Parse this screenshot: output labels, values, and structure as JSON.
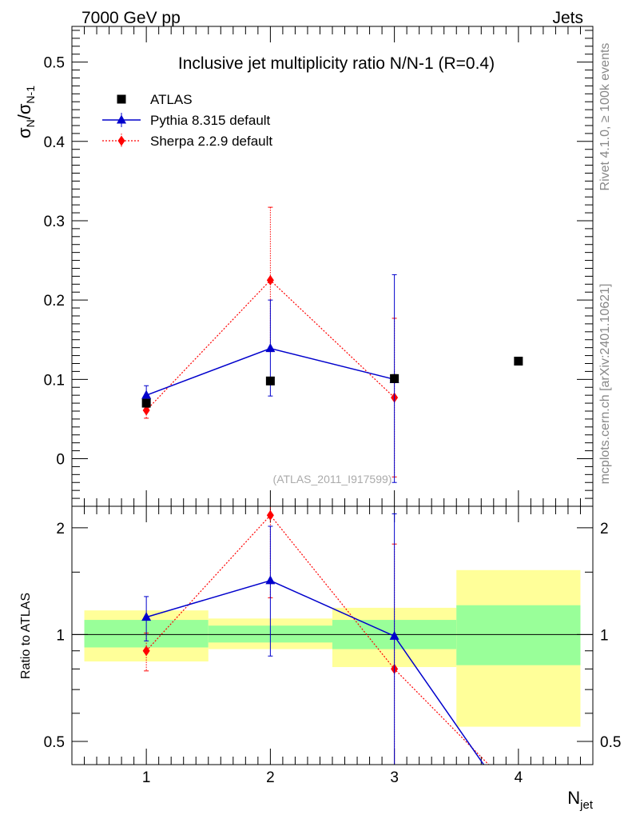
{
  "header": {
    "energy_label": "7000 GeV pp",
    "category_label": "Jets"
  },
  "side_text": {
    "rivet": "Rivet 4.1.0, ≥ 100k events",
    "mcplots": "mcplots.cern.ch [arXiv:2401.10621]"
  },
  "axis_labels": {
    "y_top_main": "σ",
    "y_top_sub1": "N",
    "y_top_slash": "/σ",
    "y_top_sub2": "N-1",
    "y_bottom": "Ratio to ATLAS",
    "x_main": "N",
    "x_sub": "jet"
  },
  "colors": {
    "atlas": "#000000",
    "pythia": "#0000cc",
    "sherpa": "#ff0000",
    "band_inner": "#99ff99",
    "band_outer": "#ffff99"
  },
  "chart_data": [
    {
      "type": "scatter",
      "title": "Inclusive jet multiplicity ratio N/N-1 (R=0.4)",
      "xlabel": "N_jet",
      "ylabel": "σ_N/σ_N-1",
      "xlim": [
        0.4,
        4.6
      ],
      "ylim": [
        -0.06,
        0.545
      ],
      "x_ticks": [
        1,
        2,
        3,
        4
      ],
      "x_tick_labels": [
        "1",
        "2",
        "3",
        "4"
      ],
      "y_ticks": [
        0,
        0.1,
        0.2,
        0.3,
        0.4,
        0.5
      ],
      "y_tick_labels": [
        "0",
        "0.1",
        "0.2",
        "0.3",
        "0.4",
        "0.5"
      ],
      "watermark": "(ATLAS_2011_I917599)",
      "legend_position": "top-left",
      "series": [
        {
          "name": "ATLAS",
          "style": "markers",
          "marker": "square",
          "x": [
            1,
            2,
            3,
            4
          ],
          "y": [
            0.07,
            0.098,
            0.101,
            0.123
          ],
          "err_low": [
            0.003,
            0.004,
            0.005,
            0.004
          ],
          "err_high": [
            0.003,
            0.004,
            0.005,
            0.004
          ]
        },
        {
          "name": "Pythia 8.315 default",
          "style": "line",
          "marker": "triangle",
          "x": [
            1,
            2,
            3
          ],
          "y": [
            0.08,
            0.139,
            0.1
          ],
          "err_low": [
            0.012,
            0.06,
            0.13
          ],
          "err_high": [
            0.012,
            0.061,
            0.132
          ]
        },
        {
          "name": "Sherpa 2.2.9 default",
          "style": "dotted",
          "marker": "diamond",
          "x": [
            1,
            2,
            3
          ],
          "y": [
            0.061,
            0.225,
            0.077
          ],
          "err_low": [
            0.01,
            0.09,
            0.1
          ],
          "err_high": [
            0.01,
            0.092,
            0.1
          ]
        }
      ]
    },
    {
      "type": "line",
      "ylabel": "Ratio to ATLAS",
      "scale": "log",
      "xlim": [
        0.4,
        4.6
      ],
      "ylim": [
        0.43,
        2.3
      ],
      "y_ticks": [
        0.5,
        1,
        2
      ],
      "y_tick_labels": [
        "0.5",
        "1",
        "2"
      ],
      "reference_line": 1,
      "uncertainty_bands": [
        {
          "x_range": [
            0.5,
            1.5
          ],
          "inner": [
            0.92,
            1.1
          ],
          "outer": [
            0.84,
            1.17
          ]
        },
        {
          "x_range": [
            1.5,
            2.5
          ],
          "inner": [
            0.95,
            1.06
          ],
          "outer": [
            0.91,
            1.11
          ]
        },
        {
          "x_range": [
            2.5,
            3.5
          ],
          "inner": [
            0.91,
            1.1
          ],
          "outer": [
            0.81,
            1.19
          ]
        },
        {
          "x_range": [
            3.5,
            4.5
          ],
          "inner": [
            0.82,
            1.21
          ],
          "outer": [
            0.55,
            1.52
          ]
        }
      ],
      "series": [
        {
          "name": "Pythia 8.315 default",
          "marker": "triangle",
          "x": [
            1,
            2,
            3,
            3.72
          ],
          "y": [
            1.12,
            1.42,
            0.99,
            0.43
          ],
          "marker_count": 3,
          "err_low": [
            0.16,
            0.55,
            0.6
          ],
          "err_high": [
            0.16,
            0.6,
            1.2
          ]
        },
        {
          "name": "Sherpa 2.2.9 default",
          "marker": "diamond",
          "x": [
            1,
            2,
            3,
            3.76
          ],
          "y": [
            0.9,
            2.17,
            0.8,
            0.43
          ],
          "marker_count": 3,
          "err_low": [
            0.11,
            0.9,
            0.45
          ],
          "err_high": [
            0.11,
            0.9,
            1.0
          ]
        }
      ]
    }
  ]
}
